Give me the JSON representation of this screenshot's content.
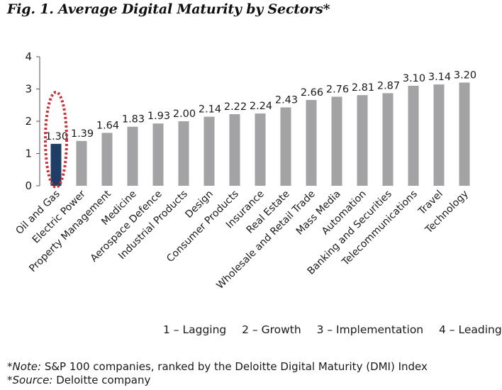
{
  "figure": {
    "title": "Fig. 1. Average Digital Maturity by Sectors*"
  },
  "chart_data": {
    "type": "bar",
    "categories": [
      "Oil and Gas",
      "Electric Power",
      "Property Management",
      "Medicine",
      "Aerospace Defence",
      "Industrial Products",
      "Design",
      "Consumer Products",
      "Insurance",
      "Real Estate",
      "Wholesale and Retail Trade",
      "Mass Media",
      "Automation",
      "Banking and Securities",
      "Telecommunications",
      "Travel",
      "Technology"
    ],
    "values": [
      1.3,
      1.39,
      1.64,
      1.83,
      1.93,
      2.0,
      2.14,
      2.22,
      2.24,
      2.43,
      2.66,
      2.76,
      2.81,
      2.87,
      3.1,
      3.14,
      3.2
    ],
    "value_labels": [
      "1.30",
      "1.39",
      "1.64",
      "1.83",
      "1.93",
      "2.00",
      "2.14",
      "2.22",
      "2.24",
      "2.43",
      "2.66",
      "2.76",
      "2.81",
      "2.87",
      "3.10",
      "3.14",
      "3.20"
    ],
    "highlighted_category": "Oil and Gas",
    "y_ticks": [
      0,
      1,
      2,
      3,
      4
    ],
    "ylim": [
      0,
      4
    ],
    "xlabel": "",
    "ylabel": "",
    "grid": false,
    "colors": {
      "bar": "#a3a3a5",
      "highlight_bar": "#1f3e66",
      "highlight_ring": "#c8323a",
      "axis": "#555555",
      "text": "#1a1a1a"
    }
  },
  "legend": {
    "items": [
      "1 – Lagging",
      "2 – Growth",
      "3 – Implementation",
      "4 – Leading"
    ]
  },
  "footnotes": {
    "note_label": "*Note:",
    "note_text": "S&P 100 companies, ranked by the Deloitte Digital Maturity (DMI) Index",
    "source_label": "*Source:",
    "source_text": "Deloitte company"
  }
}
